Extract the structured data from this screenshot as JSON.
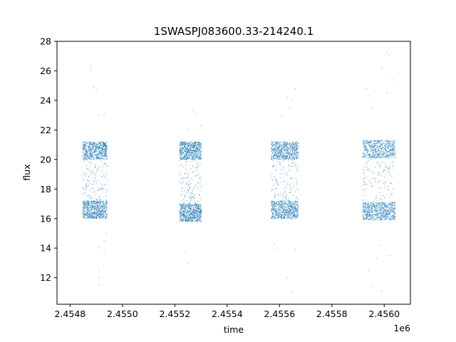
{
  "chart_data": {
    "type": "scatter",
    "title": "1SWASPJ083600.33-214240.1",
    "xlabel": "time",
    "ylabel": "flux",
    "x_offset_label": "1e6",
    "xlim": [
      2.45475,
      2.4561
    ],
    "ylim": [
      10.2,
      28
    ],
    "x_ticks": [
      2.4548,
      2.455,
      2.4552,
      2.4554,
      2.4556,
      2.4558,
      2.456
    ],
    "x_tick_labels": [
      "2.4548",
      "2.4550",
      "2.4552",
      "2.4554",
      "2.4556",
      "2.4558",
      "2.4560"
    ],
    "y_ticks": [
      12,
      14,
      16,
      18,
      20,
      22,
      24,
      26,
      28
    ],
    "y_tick_labels": [
      "12",
      "14",
      "16",
      "18",
      "20",
      "22",
      "24",
      "26",
      "28"
    ],
    "grid": false,
    "marker_color": "#1f77b4",
    "series": [
      {
        "observing_seasons": [
          {
            "x_range": [
              2.45485,
              2.45494
            ],
            "flux_range": [
              16.0,
              21.2
            ]
          },
          {
            "x_range": [
              2.45522,
              2.4553
            ],
            "flux_range": [
              15.8,
              21.2
            ]
          },
          {
            "x_range": [
              2.45557,
              2.45567
            ],
            "flux_range": [
              16.0,
              21.2
            ]
          },
          {
            "x_range": [
              2.45592,
              2.45604
            ],
            "flux_range": [
              15.9,
              21.3
            ]
          }
        ],
        "outliers": [
          [
            2.45488,
            26.3
          ],
          [
            2.45488,
            26.0
          ],
          [
            2.45489,
            24.9
          ],
          [
            2.4549,
            24.7
          ],
          [
            2.45491,
            23.0
          ],
          [
            2.45493,
            23.1
          ],
          [
            2.45491,
            12.5
          ],
          [
            2.45491,
            12.0
          ],
          [
            2.45491,
            11.5
          ],
          [
            2.45491,
            14.1
          ],
          [
            2.45493,
            14.5
          ],
          [
            2.45493,
            13.8
          ],
          [
            2.45494,
            15.0
          ],
          [
            2.45527,
            23.3
          ],
          [
            2.45528,
            23.1
          ],
          [
            2.45525,
            22.0
          ],
          [
            2.4553,
            22.3
          ],
          [
            2.45524,
            13.7
          ],
          [
            2.45525,
            13.0
          ],
          [
            2.45563,
            24.2
          ],
          [
            2.45565,
            24.0
          ],
          [
            2.45566,
            24.8
          ],
          [
            2.45564,
            23.5
          ],
          [
            2.45561,
            23.0
          ],
          [
            2.45558,
            14.3
          ],
          [
            2.45559,
            14.0
          ],
          [
            2.45563,
            12.0
          ],
          [
            2.45565,
            11.0
          ],
          [
            2.45566,
            13.9
          ],
          [
            2.45593,
            24.8
          ],
          [
            2.45594,
            24.3
          ],
          [
            2.45595,
            23.5
          ],
          [
            2.45601,
            27.2
          ],
          [
            2.45602,
            27.1
          ],
          [
            2.45599,
            26.2
          ],
          [
            2.45601,
            24.5
          ],
          [
            2.45603,
            25.4
          ],
          [
            2.45597,
            13.3
          ],
          [
            2.45594,
            12.5
          ],
          [
            2.45595,
            11.4
          ],
          [
            2.45599,
            11.1
          ],
          [
            2.45602,
            13.5
          ],
          [
            2.45598,
            14.2
          ]
        ]
      }
    ]
  }
}
